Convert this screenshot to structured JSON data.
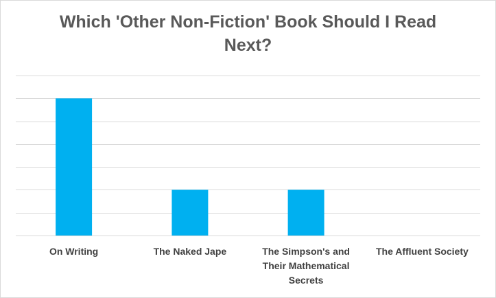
{
  "chart_data": {
    "type": "bar",
    "title": "Which 'Other Non-Fiction' Book Should I Read Next?",
    "title_lines": [
      "Which 'Other Non-Fiction' Book Should I Read",
      "Next?"
    ],
    "categories": [
      "On Writing",
      "The Naked Jape",
      "The Simpson's and Their Mathematical Secrets",
      "The Affluent Society"
    ],
    "category_lines": [
      [
        "On Writing"
      ],
      [
        "The Naked Jape"
      ],
      [
        "The Simpson's and",
        "Their Mathematical",
        "Secrets"
      ],
      [
        "The Affluent Society"
      ]
    ],
    "values": [
      6,
      2,
      2,
      0
    ],
    "ylim": [
      0,
      7
    ],
    "ytick_step": 1,
    "xlabel": "",
    "ylabel": "",
    "grid": true,
    "legend": "none",
    "bar_color": "#00b0f0",
    "grid_color": "#d9d9d9"
  }
}
